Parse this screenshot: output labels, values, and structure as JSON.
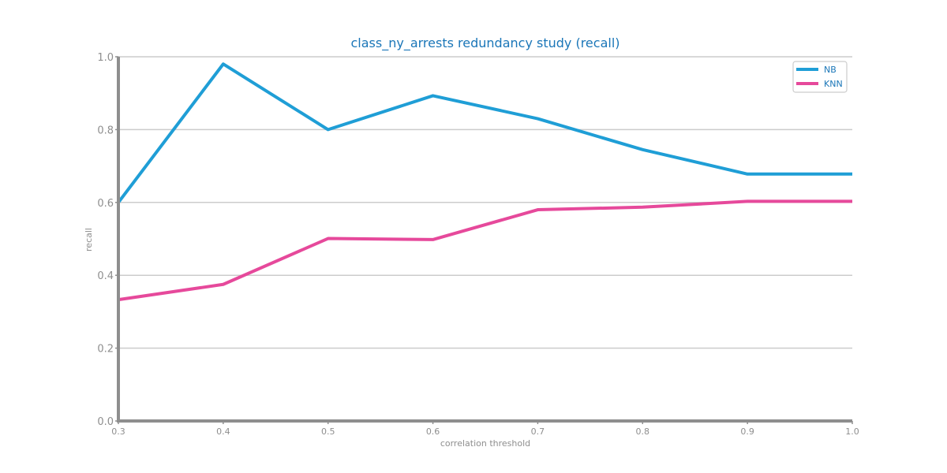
{
  "chart_data": {
    "type": "line",
    "title": "class_ny_arrests redundancy study (recall)",
    "xlabel": "correlation threshold",
    "ylabel": "recall",
    "x": [
      0.3,
      0.4,
      0.5,
      0.6,
      0.7,
      0.8,
      0.9,
      1.0
    ],
    "xlim": [
      0.3,
      1.0
    ],
    "ylim": [
      0.0,
      1.0
    ],
    "x_ticks": [
      "0.3",
      "0.4",
      "0.5",
      "0.6",
      "0.7",
      "0.8",
      "0.9",
      "1.0"
    ],
    "y_ticks": [
      "0.0",
      "0.2",
      "0.4",
      "0.6",
      "0.8",
      "1.0"
    ],
    "grid": "horizontal",
    "legend_position": "top-right",
    "series": [
      {
        "name": "NB",
        "color": "#1f9ed6",
        "values": [
          0.6,
          0.98,
          0.8,
          0.893,
          0.83,
          0.745,
          0.678,
          0.678
        ]
      },
      {
        "name": "KNN",
        "color": "#e6499b",
        "values": [
          0.333,
          0.375,
          0.501,
          0.498,
          0.58,
          0.587,
          0.603,
          0.603
        ]
      }
    ],
    "colors": {
      "title": "#1a76b8",
      "axis": "#8e8e8e",
      "grid": "#cccccc",
      "tick_label": "#8e8e8e",
      "legend_text": "#1a76b8",
      "legend_border": "#cccccc"
    }
  }
}
